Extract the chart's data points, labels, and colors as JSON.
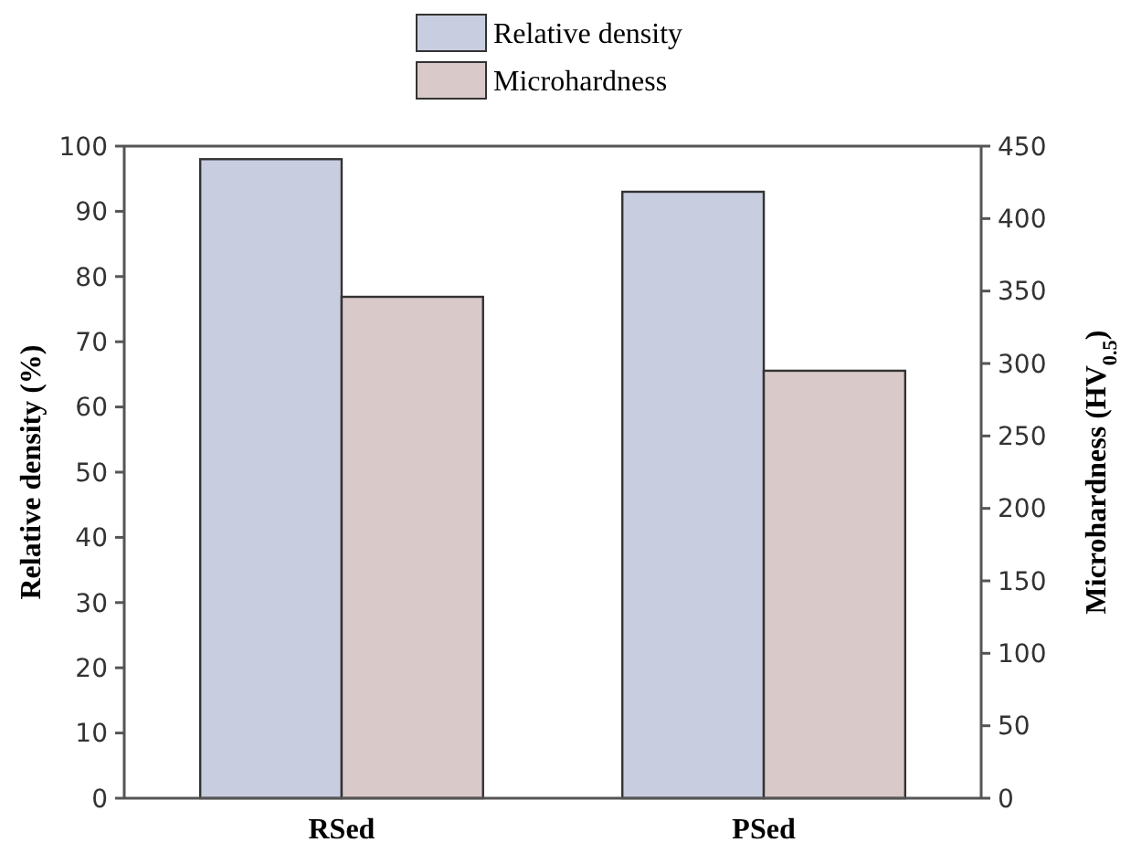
{
  "chart_data": {
    "type": "bar",
    "categories": [
      "RSed",
      "PSed"
    ],
    "ylabel": "Relative density (%)",
    "y2label": "Microhardness (HV$_{0.5}$)",
    "ylim": [
      0,
      100
    ],
    "yticks": [
      0,
      10,
      20,
      30,
      40,
      50,
      60,
      70,
      80,
      90,
      100
    ],
    "y2lim": [
      0,
      450
    ],
    "y2ticks": [
      0,
      50,
      100,
      150,
      200,
      250,
      300,
      350,
      400,
      450
    ],
    "legend": "top",
    "grid": false,
    "series": [
      {
        "name": "Relative density",
        "color": "#c9cde0",
        "values": [
          98,
          93
        ]
      },
      {
        "name": "Microhardness",
        "color": "#d9c9c9",
        "values": [
          346,
          295
        ],
        "axis": "y2"
      }
    ]
  }
}
